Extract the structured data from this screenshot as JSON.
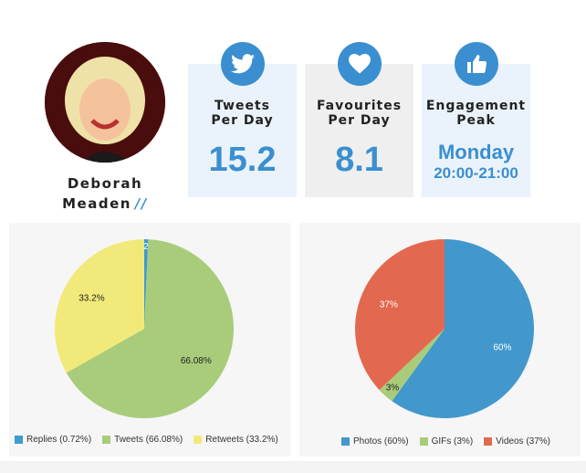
{
  "profile": {
    "first_name": "Deborah",
    "last_name": "Meaden",
    "slash": "//"
  },
  "stats": [
    {
      "label_line1": "Tweets",
      "label_line2": "Per Day",
      "value": "15.2",
      "icon": "twitter-bird-icon"
    },
    {
      "label_line1": "Favourites",
      "label_line2": "Per Day",
      "value": "8.1",
      "icon": "heart-icon"
    },
    {
      "label_line1": "Engagement",
      "label_line2": "Peak",
      "value": "Monday",
      "sub": "20:00-21:00",
      "icon": "thumbs-up-icon"
    }
  ],
  "colors": {
    "accent": "#3b8fd0",
    "card_blue": "#eaf3fb",
    "card_grey": "#efefef",
    "replies": "#3f9ad0",
    "tweets": "#a9cc7a",
    "retweets": "#f1ea7a",
    "photos": "#4298cc",
    "gifs": "#a9cc7a",
    "videos": "#e2694f"
  },
  "chart_data": [
    {
      "type": "pie",
      "slices": [
        {
          "name": "Replies",
          "value": 0.72,
          "label": "0.725%",
          "legend": "Replies (0.72%)",
          "color_key": "replies"
        },
        {
          "name": "Tweets",
          "value": 66.08,
          "label": "66.08%",
          "legend": "Tweets (66.08%)",
          "color_key": "tweets"
        },
        {
          "name": "Retweets",
          "value": 33.2,
          "label": "33.2%",
          "legend": "Retweets (33.2%)",
          "color_key": "retweets"
        }
      ],
      "legend_position": "bottom"
    },
    {
      "type": "pie",
      "slices": [
        {
          "name": "Photos",
          "value": 60,
          "label": "60%",
          "legend": "Photos (60%)",
          "color_key": "photos"
        },
        {
          "name": "GIFs",
          "value": 3,
          "label": "3%",
          "legend": "GIFs (3%)",
          "color_key": "gifs"
        },
        {
          "name": "Videos",
          "value": 37,
          "label": "37%",
          "legend": "Videos (37%)",
          "color_key": "videos"
        }
      ],
      "legend_position": "bottom"
    }
  ]
}
